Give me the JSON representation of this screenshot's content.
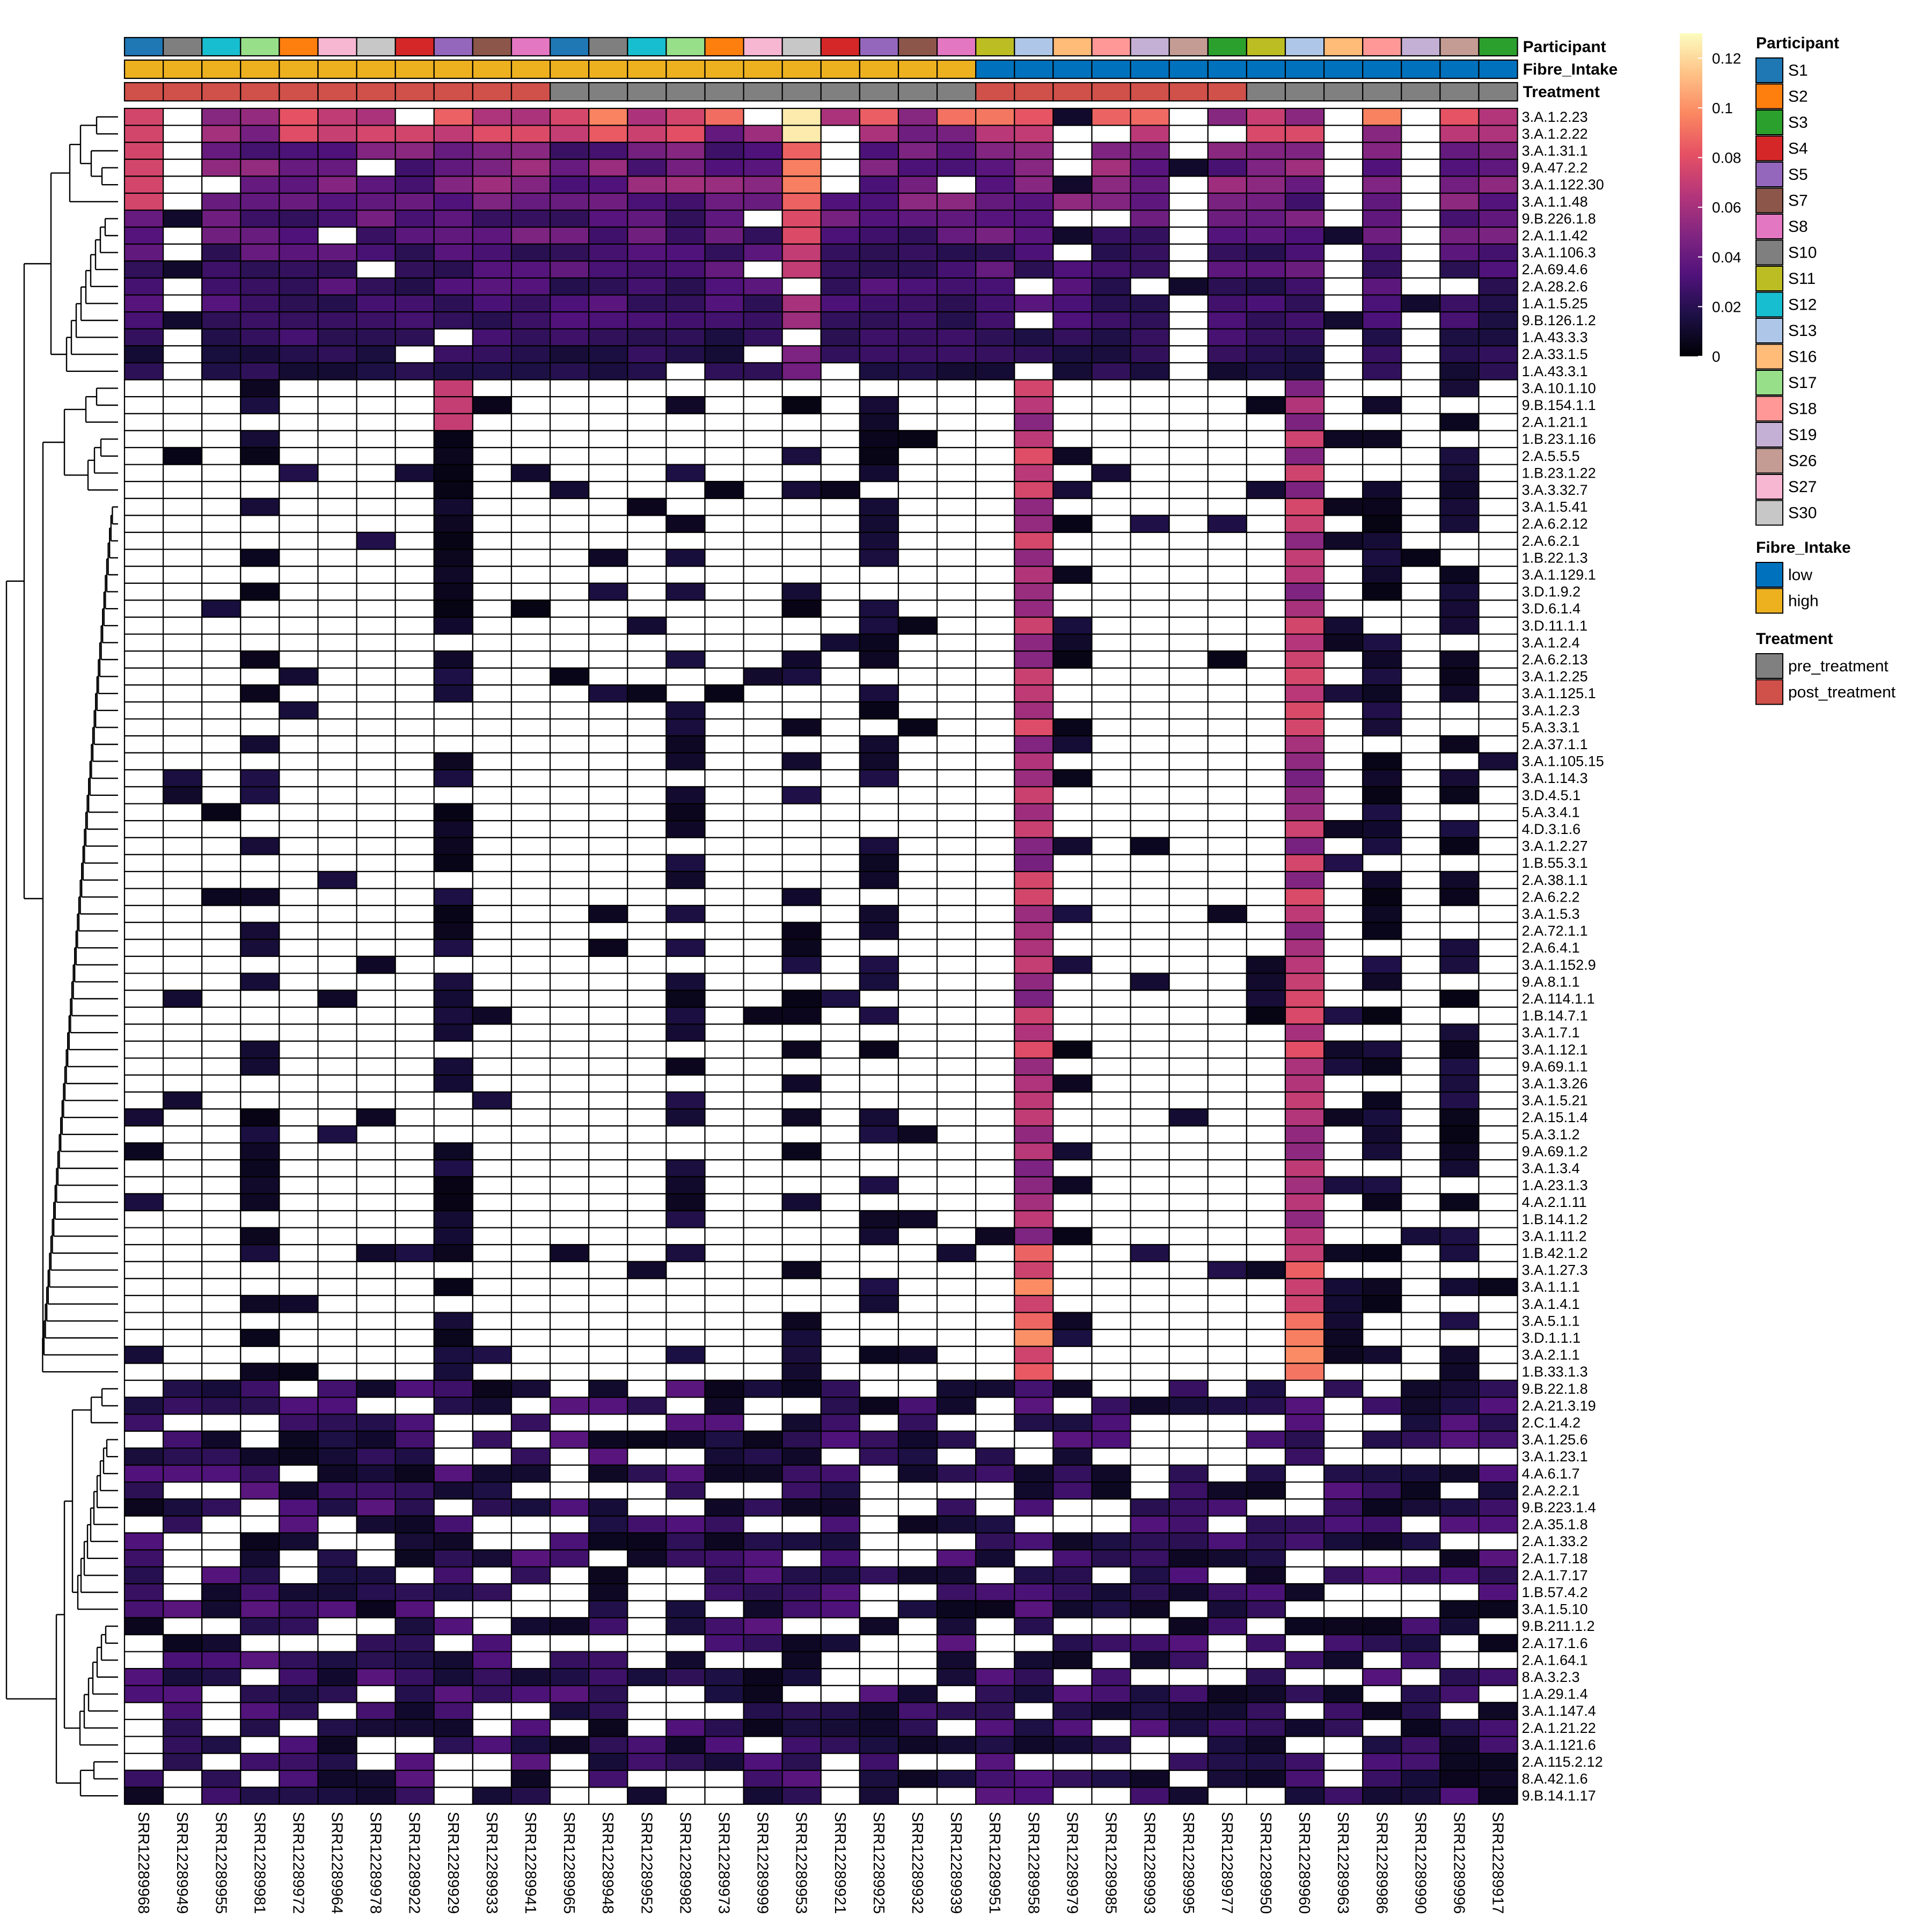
{
  "chart_data": {
    "type": "heatmap",
    "title": "",
    "xlabel": "",
    "ylabel": "",
    "columns": [
      "SRR12289968",
      "SRR12289949",
      "SRR12289955",
      "SRR12289981",
      "SRR12289972",
      "SRR12289964",
      "SRR12289978",
      "SRR12289922",
      "SRR12289929",
      "SRR12289933",
      "SRR12289941",
      "SRR12289965",
      "SRR12289948",
      "SRR12289952",
      "SRR12289982",
      "SRR12289973",
      "SRR12289999",
      "SRR12289953",
      "SRR12289921",
      "SRR12289925",
      "SRR12289932",
      "SRR12289939",
      "SRR12289951",
      "SRR12289958",
      "SRR12289979",
      "SRR12289985",
      "SRR12289993",
      "SRR12289995",
      "SRR12289977",
      "SRR12289950",
      "SRR12289960",
      "SRR12289963",
      "SRR12289986",
      "SRR12289990",
      "SRR12289996",
      "SRR12289917"
    ],
    "rows": [
      "3.A.1.2.23",
      "3.A.1.2.22",
      "3.A.1.31.1",
      "9.A.47.2.2",
      "3.A.1.122.30",
      "3.A.1.1.48",
      "9.B.226.1.8",
      "2.A.1.1.42",
      "3.A.1.106.3",
      "2.A.69.4.6",
      "2.A.28.2.6",
      "1.A.1.5.25",
      "9.B.126.1.2",
      "1.A.43.3.3",
      "2.A.33.1.5",
      "1.A.43.3.1",
      "3.A.10.1.10",
      "9.B.154.1.1",
      "2.A.1.21.1",
      "1.B.23.1.16",
      "2.A.5.5.5",
      "1.B.23.1.22",
      "3.A.3.32.7",
      "3.A.1.5.41",
      "2.A.6.2.12",
      "2.A.6.2.1",
      "1.B.22.1.3",
      "3.A.1.129.1",
      "3.D.1.9.2",
      "3.D.6.1.4",
      "3.D.11.1.1",
      "3.A.1.2.4",
      "2.A.6.2.13",
      "3.A.1.2.25",
      "3.A.1.125.1",
      "3.A.1.2.3",
      "5.A.3.3.1",
      "2.A.37.1.1",
      "3.A.1.105.15",
      "3.A.1.14.3",
      "3.D.4.5.1",
      "5.A.3.4.1",
      "4.D.3.1.6",
      "3.A.1.2.27",
      "1.B.55.3.1",
      "2.A.38.1.1",
      "2.A.6.2.2",
      "3.A.1.5.3",
      "2.A.72.1.1",
      "2.A.6.4.1",
      "3.A.1.152.9",
      "9.A.8.1.1",
      "2.A.114.1.1",
      "1.B.14.7.1",
      "3.A.1.7.1",
      "3.A.1.12.1",
      "9.A.69.1.1",
      "3.A.1.3.26",
      "3.A.1.5.21",
      "2.A.15.1.4",
      "5.A.3.1.2",
      "9.A.69.1.2",
      "3.A.1.3.4",
      "1.A.23.1.3",
      "4.A.2.1.11",
      "1.B.14.1.2",
      "3.A.1.11.2",
      "1.B.42.1.2",
      "3.A.1.27.3",
      "3.A.1.1.1",
      "3.A.1.4.1",
      "3.A.5.1.1",
      "3.D.1.1.1",
      "3.A.2.1.1",
      "1.B.33.1.3",
      "9.B.22.1.8",
      "2.A.21.3.19",
      "2.C.1.4.2",
      "3.A.1.25.6",
      "3.A.1.23.1",
      "4.A.6.1.7",
      "2.A.2.2.1",
      "9.B.223.1.4",
      "2.A.35.1.8",
      "2.A.1.33.2",
      "2.A.1.7.18",
      "2.A.1.7.17",
      "1.B.57.4.2",
      "3.A.1.5.10",
      "9.B.211.1.2",
      "2.A.17.1.6",
      "2.A.1.64.1",
      "8.A.3.2.3",
      "1.A.29.1.4",
      "3.A.1.147.4",
      "2.A.1.21.22",
      "3.A.1.121.6",
      "2.A.115.2.12",
      "8.A.42.1.6",
      "9.B.14.1.17"
    ],
    "participant": [
      "S1",
      "S10",
      "S12",
      "S17",
      "S2",
      "S27",
      "S30",
      "S4",
      "S5",
      "S7",
      "S8",
      "S1",
      "S10",
      "S12",
      "S17",
      "S2",
      "S27",
      "S30",
      "S4",
      "S5",
      "S7",
      "S8",
      "S11",
      "S13",
      "S16",
      "S18",
      "S19",
      "S26",
      "S3",
      "S11",
      "S13",
      "S16",
      "S18",
      "S19",
      "S26",
      "S3"
    ],
    "fibre_intake": [
      "high",
      "high",
      "high",
      "high",
      "high",
      "high",
      "high",
      "high",
      "high",
      "high",
      "high",
      "high",
      "high",
      "high",
      "high",
      "high",
      "high",
      "high",
      "high",
      "high",
      "high",
      "high",
      "low",
      "low",
      "low",
      "low",
      "low",
      "low",
      "low",
      "low",
      "low",
      "low",
      "low",
      "low",
      "low",
      "low"
    ],
    "treatment": [
      "post_treatment",
      "post_treatment",
      "post_treatment",
      "post_treatment",
      "post_treatment",
      "post_treatment",
      "post_treatment",
      "post_treatment",
      "post_treatment",
      "post_treatment",
      "post_treatment",
      "pre_treatment",
      "pre_treatment",
      "pre_treatment",
      "pre_treatment",
      "pre_treatment",
      "pre_treatment",
      "pre_treatment",
      "pre_treatment",
      "pre_treatment",
      "pre_treatment",
      "pre_treatment",
      "post_treatment",
      "post_treatment",
      "post_treatment",
      "post_treatment",
      "post_treatment",
      "post_treatment",
      "post_treatment",
      "pre_treatment",
      "pre_treatment",
      "pre_treatment",
      "pre_treatment",
      "pre_treatment",
      "pre_treatment",
      "pre_treatment"
    ],
    "value_range": [
      0,
      0.13
    ],
    "colorbar_ticks": [
      "0",
      "0.02",
      "0.04",
      "0.06",
      "0.08",
      "0.1",
      "0.12"
    ],
    "colorbar_tick_values": [
      0,
      0.02,
      0.04,
      0.06,
      0.08,
      0.1,
      0.12
    ],
    "colorbar_stops": [
      "#000004",
      "#1c1044",
      "#4f127b",
      "#812581",
      "#b5367a",
      "#e55064",
      "#fb8761",
      "#fec287",
      "#fcfdbf"
    ],
    "absent_value_color": "#ffffff",
    "annotation_tracks": [
      "Participant",
      "Fibre_Intake",
      "Treatment"
    ],
    "legend": {
      "participant": {
        "title": "Participant",
        "items": [
          {
            "label": "S1",
            "color": "#1f77b4"
          },
          {
            "label": "S2",
            "color": "#ff7f0e"
          },
          {
            "label": "S3",
            "color": "#2ca02c"
          },
          {
            "label": "S4",
            "color": "#d62728"
          },
          {
            "label": "S5",
            "color": "#9467bd"
          },
          {
            "label": "S7",
            "color": "#8c564b"
          },
          {
            "label": "S8",
            "color": "#e377c2"
          },
          {
            "label": "S10",
            "color": "#7f7f7f"
          },
          {
            "label": "S11",
            "color": "#bcbd22"
          },
          {
            "label": "S12",
            "color": "#17becf"
          },
          {
            "label": "S13",
            "color": "#aec7e8"
          },
          {
            "label": "S16",
            "color": "#ffbb78"
          },
          {
            "label": "S17",
            "color": "#98df8a"
          },
          {
            "label": "S18",
            "color": "#ff9896"
          },
          {
            "label": "S19",
            "color": "#c5b0d5"
          },
          {
            "label": "S26",
            "color": "#c49c94"
          },
          {
            "label": "S27",
            "color": "#f7b6d2"
          },
          {
            "label": "S30",
            "color": "#c7c7c7"
          }
        ]
      },
      "fibre_intake": {
        "title": "Fibre_Intake",
        "items": [
          {
            "label": "low",
            "color": "#0072bd"
          },
          {
            "label": "high",
            "color": "#edb120"
          }
        ]
      },
      "treatment": {
        "title": "Treatment",
        "items": [
          {
            "label": "pre_treatment",
            "color": "#808080"
          },
          {
            "label": "post_treatment",
            "color": "#d0504a"
          }
        ]
      }
    }
  }
}
